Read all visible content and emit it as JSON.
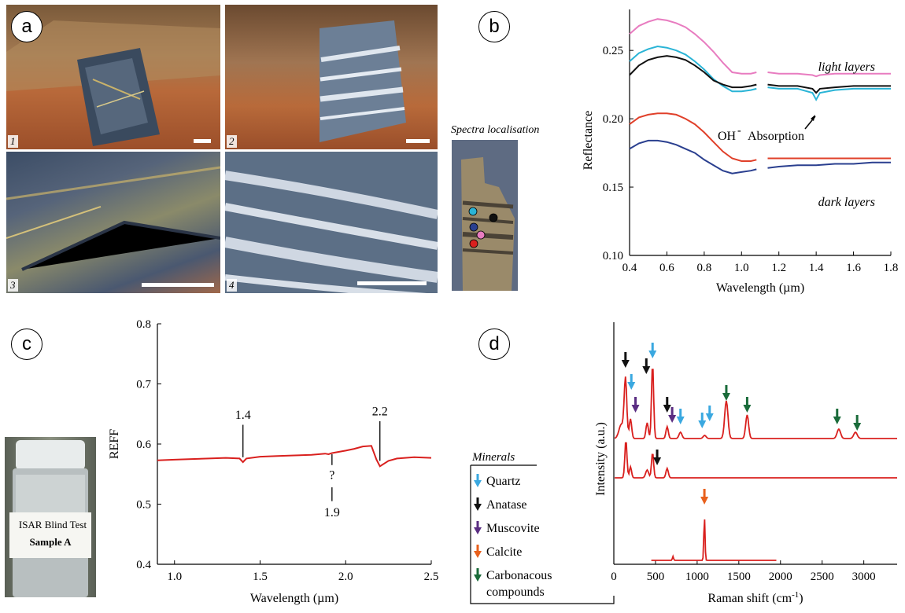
{
  "panels": {
    "a": "a",
    "b": "b",
    "c": "c",
    "d": "d"
  },
  "photos": [
    "1",
    "2",
    "3",
    "4"
  ],
  "spectra_localisation": "Spectra localisation",
  "vial": {
    "line1": "ISAR Blind Test",
    "line2": "Sample A"
  },
  "colors": {
    "pink": "#e87cc0",
    "cyan": "#2ab4d6",
    "black": "#111111",
    "orange_red": "#e0402a",
    "navy": "#2a3f8f",
    "red": "#d9201e",
    "quartz": "#3aa8e0",
    "anatase": "#111111",
    "muscovite": "#5a2d82",
    "calcite": "#e8601c",
    "carbon": "#1a6b3a"
  },
  "chart_data": [
    {
      "id": "b",
      "type": "line",
      "xlabel": "Wavelength (µm)",
      "ylabel": "Reflectance",
      "xlim": [
        0.4,
        1.8
      ],
      "ylim": [
        0.1,
        0.28
      ],
      "xticks": [
        "0.4",
        "0.6",
        "0.8",
        "1.0",
        "1.2",
        "1.4",
        "1.6",
        "1.8"
      ],
      "yticks": [
        "0.10",
        "0.15",
        "0.20",
        "0.25"
      ],
      "annotations": [
        "light layers",
        "dark layers",
        "OH",
        "-",
        "Absorption"
      ],
      "gap": [
        1.08,
        1.14
      ],
      "series": [
        {
          "color": "pink",
          "x": [
            0.4,
            0.45,
            0.5,
            0.55,
            0.6,
            0.65,
            0.7,
            0.75,
            0.8,
            0.85,
            0.9,
            0.95,
            1.0,
            1.05,
            1.08,
            1.14,
            1.2,
            1.3,
            1.38,
            1.4,
            1.42,
            1.5,
            1.6,
            1.7,
            1.8
          ],
          "y": [
            0.262,
            0.268,
            0.271,
            0.273,
            0.272,
            0.27,
            0.267,
            0.262,
            0.256,
            0.249,
            0.241,
            0.234,
            0.233,
            0.233,
            0.234,
            0.234,
            0.233,
            0.233,
            0.232,
            0.231,
            0.232,
            0.233,
            0.233,
            0.233,
            0.233
          ]
        },
        {
          "color": "cyan",
          "x": [
            0.4,
            0.45,
            0.5,
            0.55,
            0.6,
            0.65,
            0.7,
            0.75,
            0.8,
            0.85,
            0.9,
            0.95,
            1.0,
            1.05,
            1.08,
            1.14,
            1.2,
            1.3,
            1.38,
            1.4,
            1.42,
            1.5,
            1.6,
            1.7,
            1.8
          ],
          "y": [
            0.242,
            0.248,
            0.251,
            0.253,
            0.252,
            0.25,
            0.247,
            0.242,
            0.236,
            0.229,
            0.224,
            0.22,
            0.22,
            0.221,
            0.222,
            0.223,
            0.222,
            0.222,
            0.219,
            0.214,
            0.219,
            0.221,
            0.222,
            0.222,
            0.222
          ]
        },
        {
          "color": "black",
          "x": [
            0.4,
            0.45,
            0.5,
            0.55,
            0.6,
            0.65,
            0.7,
            0.75,
            0.8,
            0.85,
            0.9,
            0.95,
            1.0,
            1.05,
            1.08,
            1.14,
            1.2,
            1.3,
            1.38,
            1.4,
            1.42,
            1.5,
            1.6,
            1.7,
            1.8
          ],
          "y": [
            0.232,
            0.239,
            0.243,
            0.245,
            0.246,
            0.245,
            0.243,
            0.239,
            0.234,
            0.228,
            0.225,
            0.223,
            0.223,
            0.224,
            0.225,
            0.225,
            0.224,
            0.224,
            0.222,
            0.219,
            0.222,
            0.223,
            0.224,
            0.224,
            0.224
          ]
        },
        {
          "color": "orange_red",
          "x": [
            0.4,
            0.45,
            0.5,
            0.55,
            0.6,
            0.65,
            0.7,
            0.75,
            0.8,
            0.85,
            0.9,
            0.95,
            1.0,
            1.05,
            1.08,
            1.14,
            1.2,
            1.3,
            1.4,
            1.5,
            1.6,
            1.7,
            1.8
          ],
          "y": [
            0.196,
            0.201,
            0.203,
            0.204,
            0.204,
            0.203,
            0.2,
            0.196,
            0.19,
            0.183,
            0.176,
            0.171,
            0.169,
            0.169,
            0.17,
            0.171,
            0.171,
            0.171,
            0.171,
            0.171,
            0.171,
            0.171,
            0.171
          ]
        },
        {
          "color": "navy",
          "x": [
            0.4,
            0.45,
            0.5,
            0.55,
            0.6,
            0.65,
            0.7,
            0.75,
            0.8,
            0.85,
            0.9,
            0.95,
            1.0,
            1.05,
            1.08,
            1.14,
            1.2,
            1.3,
            1.4,
            1.5,
            1.6,
            1.7,
            1.8
          ],
          "y": [
            0.178,
            0.182,
            0.184,
            0.184,
            0.183,
            0.181,
            0.178,
            0.175,
            0.17,
            0.166,
            0.162,
            0.16,
            0.161,
            0.162,
            0.163,
            0.164,
            0.165,
            0.166,
            0.166,
            0.167,
            0.167,
            0.168,
            0.168
          ]
        }
      ]
    },
    {
      "id": "c",
      "type": "line",
      "xlabel": "Wavelength (µm)",
      "ylabel": "REFF",
      "xlim": [
        0.9,
        2.5
      ],
      "ylim": [
        0.4,
        0.8
      ],
      "xticks": [
        "1.0",
        "1.5",
        "2.0",
        "2.5"
      ],
      "yticks": [
        "0.4",
        "0.5",
        "0.6",
        "0.7",
        "0.8"
      ],
      "annotations": [
        "1.4",
        "?",
        "1.9",
        "2.2"
      ],
      "series": [
        {
          "color": "red",
          "x": [
            0.9,
            1.0,
            1.1,
            1.2,
            1.3,
            1.38,
            1.4,
            1.42,
            1.5,
            1.6,
            1.7,
            1.8,
            1.88,
            1.9,
            1.92,
            2.0,
            2.05,
            2.1,
            2.15,
            2.18,
            2.2,
            2.25,
            2.3,
            2.4,
            2.5
          ],
          "y": [
            0.573,
            0.574,
            0.575,
            0.576,
            0.577,
            0.576,
            0.57,
            0.576,
            0.579,
            0.58,
            0.581,
            0.582,
            0.584,
            0.583,
            0.585,
            0.589,
            0.592,
            0.596,
            0.597,
            0.574,
            0.563,
            0.572,
            0.576,
            0.578,
            0.577
          ]
        }
      ]
    },
    {
      "id": "d",
      "type": "line",
      "xlabel": "Raman shift (cm",
      "xlabel_sup": "-1",
      "xlabel_end": ")",
      "ylabel": "Intensity (a.u.)",
      "xlim": [
        0,
        3400
      ],
      "xticks": [
        "0",
        "500",
        "1000",
        "1500",
        "2000",
        "2500",
        "3000"
      ],
      "legend_title": "Minerals",
      "legend": [
        {
          "label": "Quartz",
          "color": "quartz"
        },
        {
          "label": "Anatase",
          "color": "anatase"
        },
        {
          "label": "Muscovite",
          "color": "muscovite"
        },
        {
          "label": "Calcite",
          "color": "calcite"
        },
        {
          "label": "Carbonacous",
          "label2": "compounds",
          "color": "carbon"
        }
      ]
    }
  ]
}
